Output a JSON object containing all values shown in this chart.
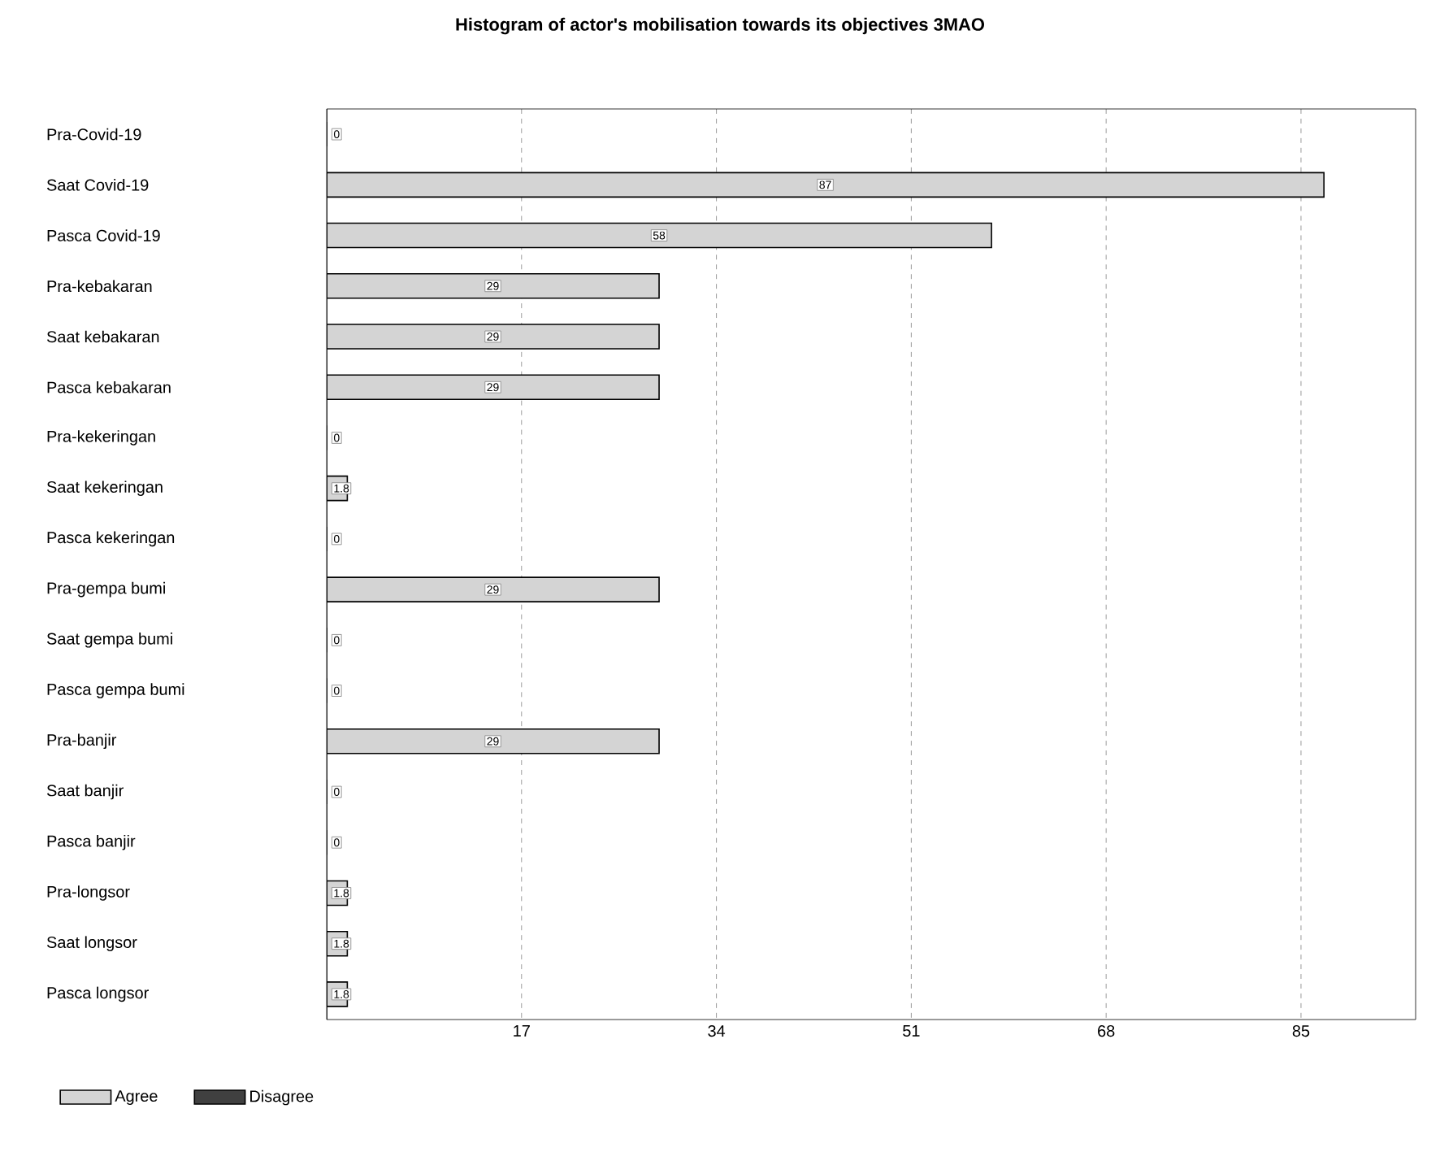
{
  "chart_data": {
    "type": "bar",
    "orientation": "horizontal",
    "title": "Histogram of actor's mobilisation towards its objectives 3MAO",
    "categories": [
      "Pra-Covid-19",
      "Saat Covid-19",
      "Pasca Covid-19",
      "Pra-kebakaran",
      "Saat kebakaran",
      "Pasca kebakaran",
      "Pra-kekeringan",
      "Saat kekeringan",
      "Pasca kekeringan",
      "Pra-gempa bumi",
      "Saat gempa bumi",
      "Pasca gempa bumi",
      "Pra-banjir",
      "Saat banjir",
      "Pasca banjir",
      "Pra-longsor",
      "Saat longsor",
      "Pasca longsor"
    ],
    "series": [
      {
        "name": "Agree",
        "color": "#d4d4d4",
        "values": [
          0,
          87,
          58,
          29,
          29,
          29,
          0,
          1.8,
          0,
          29,
          0,
          0,
          29,
          0,
          0,
          1.8,
          1.8,
          1.8
        ],
        "value_labels": [
          "0",
          "87",
          "58",
          "29",
          "29",
          "29",
          "0",
          "1.8",
          "0",
          "29",
          "0",
          "0",
          "29",
          "0",
          "0",
          "1.8",
          "1.8",
          "1.8"
        ]
      },
      {
        "name": "Disagree",
        "color": "#404040",
        "values": [
          0,
          0,
          0,
          0,
          0,
          0,
          0,
          0,
          0,
          0,
          0,
          0,
          0,
          0,
          0,
          0,
          0,
          0
        ]
      }
    ],
    "xlim": [
      0,
      95
    ],
    "xticks": [
      17,
      34,
      51,
      68,
      85
    ],
    "grid": "x",
    "legend": "bottom left"
  }
}
